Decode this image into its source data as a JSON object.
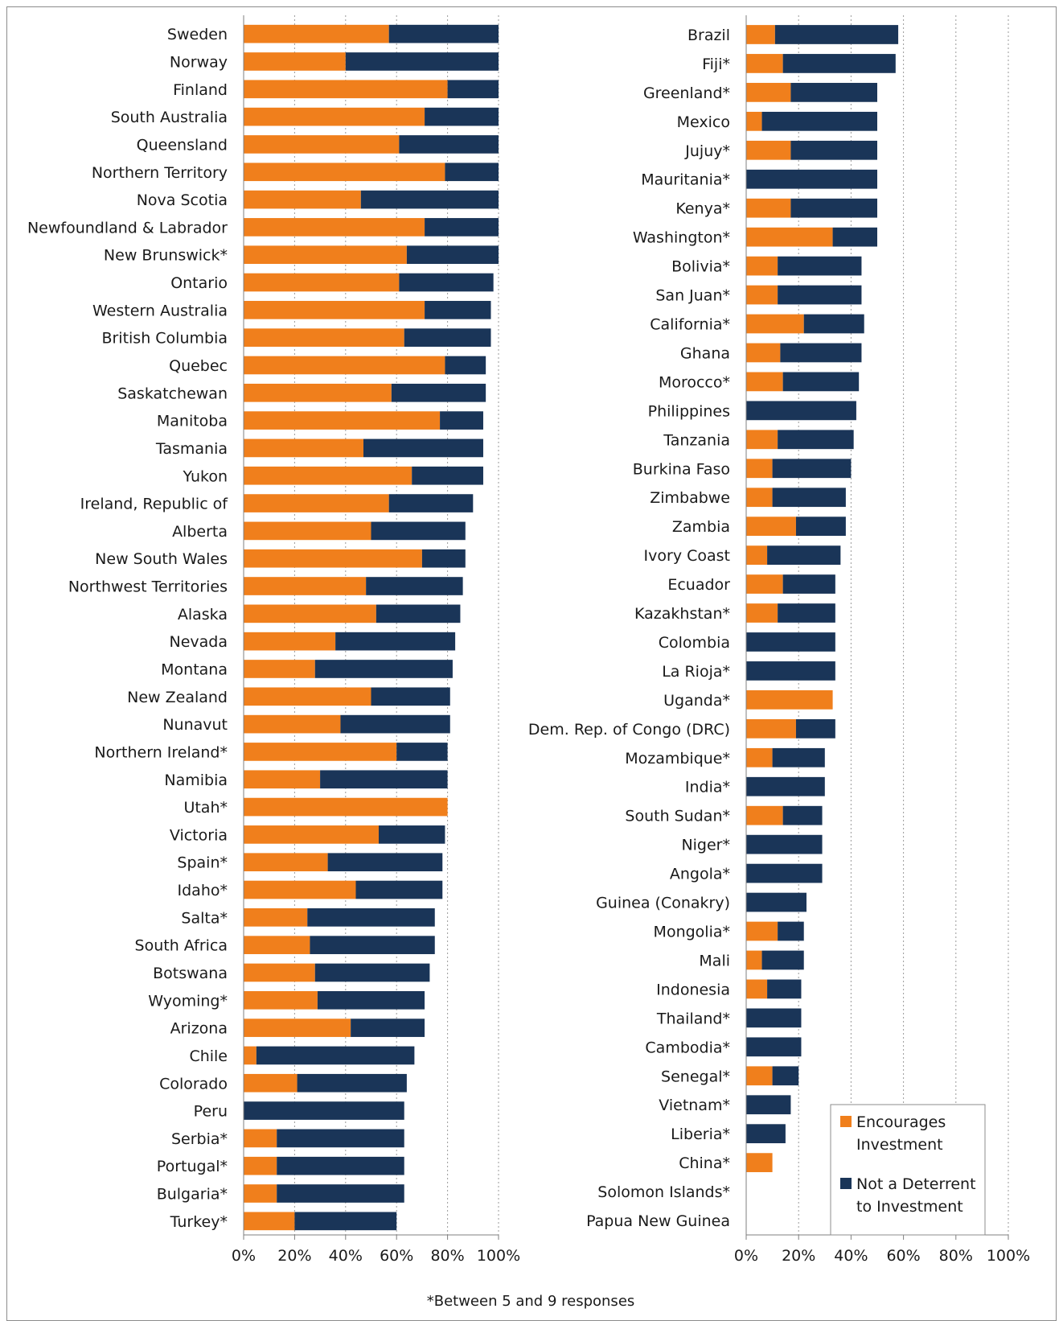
{
  "chart_data": [
    {
      "type": "bar",
      "orientation": "horizontal",
      "stacked": true,
      "xlim": [
        0,
        100
      ],
      "x_ticks": [
        "0%",
        "20%",
        "40%",
        "60%",
        "80%",
        "100%"
      ],
      "grid": "vertical dotted",
      "series_names": [
        "Encourages Investment",
        "Not a Deterrent to Investment"
      ],
      "categories": [
        "Sweden",
        "Norway",
        "Finland",
        "South Australia",
        "Queensland",
        "Northern Territory",
        "Nova Scotia",
        "Newfoundland & Labrador",
        "New Brunswick*",
        "Ontario",
        "Western Australia",
        "British Columbia",
        "Quebec",
        "Saskatchewan",
        "Manitoba",
        "Tasmania",
        "Yukon",
        "Ireland, Republic of",
        "Alberta",
        "New South Wales",
        "Northwest Territories",
        "Alaska",
        "Nevada",
        "Montana",
        "New Zealand",
        "Nunavut",
        "Northern Ireland*",
        "Namibia",
        "Utah*",
        "Victoria",
        "Spain*",
        "Idaho*",
        "Salta*",
        "South Africa",
        "Botswana",
        "Wyoming*",
        "Arizona",
        "Chile",
        "Colorado",
        "Peru",
        "Serbia*",
        "Portugal*",
        "Bulgaria*",
        "Turkey*"
      ],
      "series": [
        {
          "name": "Encourages Investment",
          "color": "#f07f1c",
          "values": [
            57,
            40,
            80,
            71,
            61,
            79,
            46,
            71,
            64,
            61,
            71,
            63,
            79,
            58,
            77,
            47,
            66,
            57,
            50,
            70,
            48,
            52,
            36,
            28,
            50,
            38,
            60,
            30,
            80,
            53,
            33,
            44,
            25,
            26,
            28,
            29,
            42,
            5,
            21,
            0,
            13,
            13,
            13,
            20
          ]
        },
        {
          "name": "Not a Deterrent to Investment",
          "color": "#1a3558",
          "values": [
            43,
            60,
            20,
            29,
            39,
            21,
            54,
            29,
            36,
            37,
            26,
            34,
            16,
            37,
            17,
            47,
            28,
            33,
            37,
            17,
            38,
            33,
            47,
            54,
            31,
            43,
            20,
            50,
            0,
            26,
            45,
            34,
            50,
            49,
            45,
            42,
            29,
            62,
            43,
            63,
            50,
            50,
            50,
            40
          ]
        }
      ]
    },
    {
      "type": "bar",
      "orientation": "horizontal",
      "stacked": true,
      "xlim": [
        0,
        100
      ],
      "x_ticks": [
        "0%",
        "20%",
        "40%",
        "60%",
        "80%",
        "100%"
      ],
      "grid": "vertical dotted",
      "series_names": [
        "Encourages Investment",
        "Not a Deterrent to Investment"
      ],
      "categories": [
        "Brazil",
        "Fiji*",
        "Greenland*",
        "Mexico",
        "Jujuy*",
        "Mauritania*",
        "Kenya*",
        "Washington*",
        "Bolivia*",
        "San Juan*",
        "California*",
        "Ghana",
        "Morocco*",
        "Philippines",
        "Tanzania",
        "Burkina Faso",
        "Zimbabwe",
        "Zambia",
        "Ivory Coast",
        "Ecuador",
        "Kazakhstan*",
        "Colombia",
        "La Rioja*",
        "Uganda*",
        "Dem. Rep. of Congo (DRC)",
        "Mozambique*",
        "India*",
        "South Sudan*",
        "Niger*",
        "Angola*",
        "Guinea (Conakry)",
        "Mongolia*",
        "Mali",
        "Indonesia",
        "Thailand*",
        "Cambodia*",
        "Senegal*",
        "Vietnam*",
        "Liberia*",
        "China*",
        "Solomon Islands*",
        "Papua New Guinea"
      ],
      "series": [
        {
          "name": "Encourages Investment",
          "color": "#f07f1c",
          "values": [
            11,
            14,
            17,
            6,
            17,
            0,
            17,
            33,
            12,
            12,
            22,
            13,
            14,
            0,
            12,
            10,
            10,
            19,
            8,
            14,
            12,
            0,
            0,
            33,
            19,
            10,
            0,
            14,
            0,
            0,
            0,
            12,
            6,
            8,
            0,
            0,
            10,
            0,
            0,
            10,
            0,
            0
          ]
        },
        {
          "name": "Not a Deterrent to Investment",
          "color": "#1a3558",
          "values": [
            47,
            43,
            33,
            44,
            33,
            50,
            33,
            17,
            32,
            32,
            23,
            31,
            29,
            42,
            29,
            30,
            28,
            19,
            28,
            20,
            22,
            34,
            34,
            0,
            15,
            20,
            30,
            15,
            29,
            29,
            23,
            10,
            16,
            13,
            21,
            21,
            10,
            17,
            15,
            0,
            0,
            0
          ]
        }
      ]
    }
  ],
  "legend": {
    "item1": "Encourages",
    "item1b": "Investment",
    "item2": "Not a Deterrent",
    "item2b": "to Investment"
  },
  "footnote": "*Between 5 and 9 responses"
}
